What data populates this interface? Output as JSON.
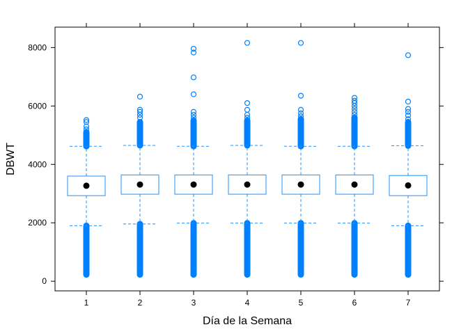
{
  "chart_data": {
    "type": "boxplot",
    "xlabel": "Día de la Semana",
    "ylabel": "DBWT",
    "categories": [
      "1",
      "2",
      "3",
      "4",
      "5",
      "6",
      "7"
    ],
    "ylim": [
      -330,
      8700
    ],
    "yticks": [
      0,
      2000,
      4000,
      6000,
      8000
    ],
    "colors": {
      "box": "#1E90FF",
      "points": "#0080FF",
      "median": "#000000"
    },
    "boxes": [
      {
        "category": "1",
        "whisker_low": 1900,
        "q1": 2930,
        "median": 3270,
        "q3": 3600,
        "whisker_high": 4620,
        "outliers_high_dense": [
          4620,
          5100
        ],
        "outliers_high": [
          5200,
          5300,
          5450,
          5520
        ],
        "outliers_low_dense": [
          227,
          1900
        ]
      },
      {
        "category": "2",
        "whisker_low": 1960,
        "q1": 2980,
        "median": 3310,
        "q3": 3640,
        "whisker_high": 4650,
        "outliers_high_dense": [
          4650,
          5450
        ],
        "outliers_high": [
          5600,
          5700,
          5800,
          5870,
          6320
        ],
        "outliers_low_dense": [
          227,
          1960
        ]
      },
      {
        "category": "3",
        "whisker_low": 1990,
        "q1": 2980,
        "median": 3310,
        "q3": 3640,
        "whisker_high": 4620,
        "outliers_high_dense": [
          4620,
          5500
        ],
        "outliers_high": [
          5600,
          5700,
          5800,
          6400,
          6980,
          7830,
          7960
        ],
        "outliers_low_dense": [
          227,
          1990
        ]
      },
      {
        "category": "4",
        "whisker_low": 1990,
        "q1": 2980,
        "median": 3310,
        "q3": 3640,
        "whisker_high": 4650,
        "outliers_high_dense": [
          4650,
          5500
        ],
        "outliers_high": [
          5600,
          5700,
          5870,
          6100,
          8160
        ],
        "outliers_low_dense": [
          227,
          1990
        ]
      },
      {
        "category": "5",
        "whisker_low": 1990,
        "q1": 2980,
        "median": 3310,
        "q3": 3640,
        "whisker_high": 4620,
        "outliers_high_dense": [
          4620,
          5550
        ],
        "outliers_high": [
          5650,
          5750,
          5870,
          6350,
          8160
        ],
        "outliers_low_dense": [
          227,
          1990
        ]
      },
      {
        "category": "6",
        "whisker_low": 1990,
        "q1": 2980,
        "median": 3310,
        "q3": 3640,
        "whisker_high": 4620,
        "outliers_high_dense": [
          4620,
          5600
        ],
        "outliers_high": [
          5700,
          5800,
          5900,
          6000,
          6100,
          6180,
          6280
        ],
        "outliers_low_dense": [
          227,
          1990
        ]
      },
      {
        "category": "7",
        "whisker_low": 1900,
        "q1": 2930,
        "median": 3280,
        "q3": 3620,
        "whisker_high": 4640,
        "outliers_high_dense": [
          4640,
          5450
        ],
        "outliers_high": [
          5550,
          5680,
          5800,
          5900,
          6150,
          7740
        ],
        "outliers_low_dense": [
          227,
          1900
        ]
      }
    ]
  }
}
